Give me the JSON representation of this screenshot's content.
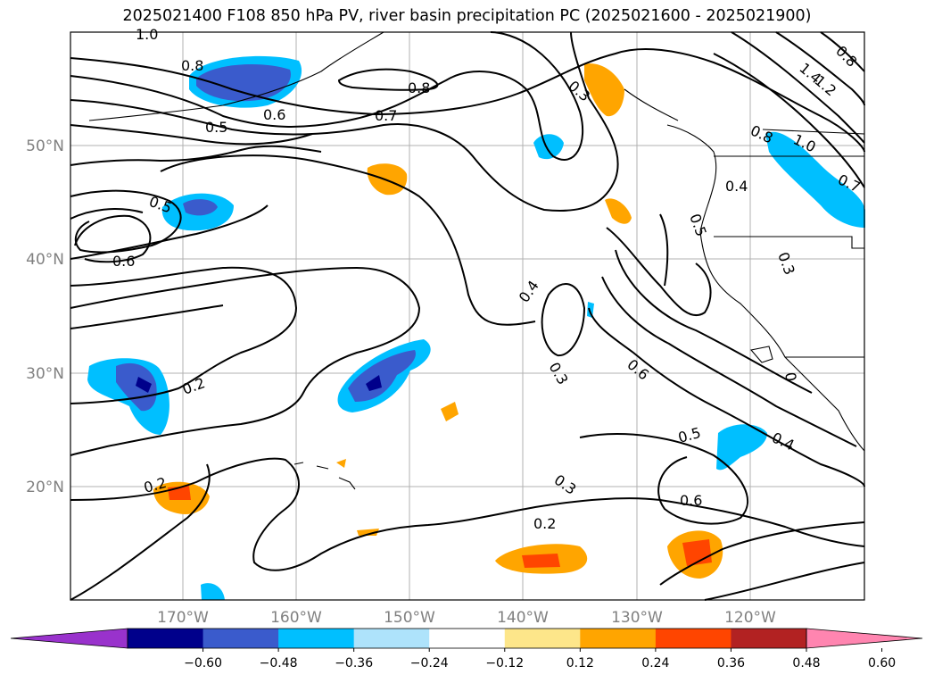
{
  "title": "2025021400 F108 850 hPa PV, river basin precipitation PC (2025021600 - 2025021900)",
  "axes": {
    "lat_labels": [
      "50°N",
      "40°N",
      "30°N",
      "20°N"
    ],
    "lon_labels": [
      "170°W",
      "160°W",
      "150°W",
      "140°W",
      "130°W",
      "120°W"
    ]
  },
  "contour_labels": [
    "1.0",
    "0.8",
    "0.8",
    "0.7",
    "0.6",
    "0.5",
    "0.5",
    "0.6",
    "0.4",
    "0.3",
    "0.6",
    "0.2",
    "0.2",
    "0.2",
    "0.3",
    "0.5",
    "0.6",
    "0.4",
    "0.4",
    "0.5",
    "0.3",
    "0",
    "1.0",
    "1.2",
    "1.4",
    "0.8",
    "0.8",
    "0.7",
    "0.3"
  ],
  "colorbar": {
    "ticks": [
      "−0.60",
      "−0.48",
      "−0.36",
      "−0.24",
      "−0.12",
      "0.12",
      "0.24",
      "0.36",
      "0.48",
      "0.60"
    ],
    "colors": [
      "#9932cc",
      "#00008b",
      "#3a5bcc",
      "#00bfff",
      "#aee3fb",
      "#ffffff",
      "#fde68a",
      "#ffa500",
      "#ff4500",
      "#b22222",
      "#ff85b0"
    ]
  }
}
